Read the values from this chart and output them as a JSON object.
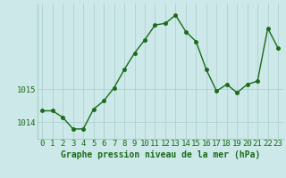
{
  "x": [
    0,
    1,
    2,
    3,
    4,
    5,
    6,
    7,
    8,
    9,
    10,
    11,
    12,
    13,
    14,
    15,
    16,
    17,
    18,
    19,
    20,
    21,
    22,
    23
  ],
  "y": [
    1014.35,
    1014.35,
    1014.15,
    1013.8,
    1013.8,
    1014.4,
    1014.65,
    1015.05,
    1015.6,
    1016.1,
    1016.5,
    1016.95,
    1017.0,
    1017.25,
    1016.75,
    1016.45,
    1015.6,
    1014.95,
    1015.15,
    1014.9,
    1015.15,
    1015.25,
    1016.85,
    1016.25
  ],
  "line_color": "#1a6b1a",
  "marker_color": "#1a6b1a",
  "bg_color": "#cce8e8",
  "grid_color": "#aacccc",
  "xlabel": "Graphe pression niveau de la mer (hPa)",
  "xlabel_color": "#1a6b1a",
  "ytick_labels": [
    "1014",
    "1015"
  ],
  "ytick_values": [
    1014,
    1015
  ],
  "ylim": [
    1013.5,
    1017.6
  ],
  "xlim": [
    -0.5,
    23.5
  ],
  "xtick_labels": [
    "0",
    "1",
    "2",
    "3",
    "4",
    "5",
    "6",
    "7",
    "8",
    "9",
    "10",
    "11",
    "12",
    "13",
    "14",
    "15",
    "16",
    "17",
    "18",
    "19",
    "20",
    "21",
    "22",
    "23"
  ],
  "title_fontsize": 7,
  "tick_fontsize": 6.5,
  "marker_size": 2.5,
  "line_width": 1.0
}
